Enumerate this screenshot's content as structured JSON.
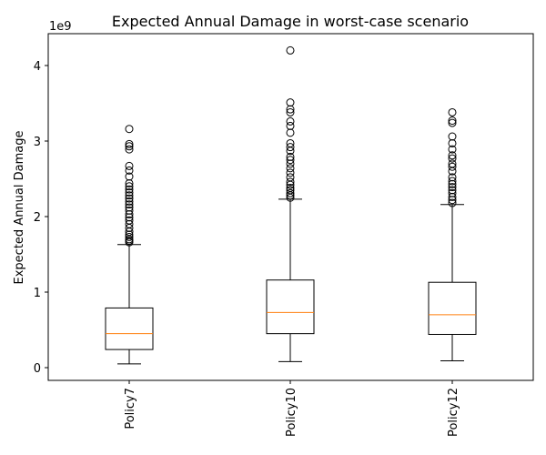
{
  "chart_data": {
    "type": "boxplot",
    "title": "Expected Annual Damage in worst-case scenario",
    "xlabel": "",
    "ylabel": "Expected Annual Damage",
    "y_offset_label": "1e9",
    "y_scale_factor": 1000000000,
    "ylim": [
      -0.17,
      4.4
    ],
    "yticks": [
      0,
      1,
      2,
      3,
      4
    ],
    "ytick_labels": [
      "0",
      "1",
      "2",
      "3",
      "4"
    ],
    "categories": [
      "Policy7",
      "Policy10",
      "Policy12"
    ],
    "median_color": "#ff7f0e",
    "box_color": "#000000",
    "boxes": [
      {
        "label": "Policy7",
        "whisker_low": 0.05,
        "q1": 0.24,
        "median": 0.45,
        "q3": 0.79,
        "whisker_high": 1.63,
        "outliers": [
          1.66,
          1.68,
          1.7,
          1.73,
          1.76,
          1.8,
          1.85,
          1.9,
          1.95,
          1.99,
          2.03,
          2.08,
          2.12,
          2.16,
          2.2,
          2.24,
          2.28,
          2.32,
          2.36,
          2.4,
          2.44,
          2.53,
          2.61,
          2.67,
          2.89,
          2.93,
          2.96,
          3.16
        ]
      },
      {
        "label": "Policy10",
        "whisker_low": 0.08,
        "q1": 0.45,
        "median": 0.73,
        "q3": 1.16,
        "whisker_high": 2.23,
        "outliers": [
          2.25,
          2.28,
          2.31,
          2.35,
          2.38,
          2.42,
          2.46,
          2.52,
          2.58,
          2.64,
          2.7,
          2.75,
          2.79,
          2.87,
          2.92,
          2.97,
          3.11,
          3.2,
          3.26,
          3.38,
          3.42,
          3.51,
          4.2
        ]
      },
      {
        "label": "Policy12",
        "whisker_low": 0.09,
        "q1": 0.44,
        "median": 0.7,
        "q3": 1.13,
        "whisker_high": 2.16,
        "outliers": [
          2.18,
          2.22,
          2.26,
          2.31,
          2.35,
          2.39,
          2.43,
          2.47,
          2.52,
          2.6,
          2.66,
          2.7,
          2.77,
          2.81,
          2.89,
          2.97,
          3.06,
          3.24,
          3.27,
          3.38
        ]
      }
    ]
  }
}
